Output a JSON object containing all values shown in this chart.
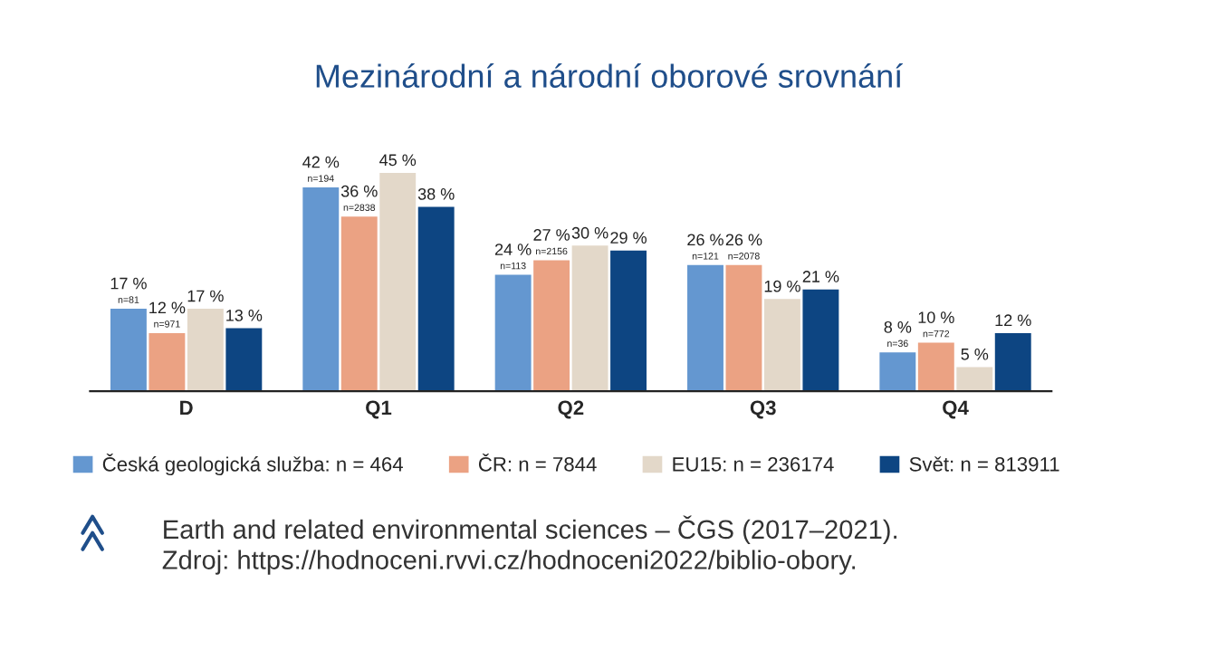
{
  "chart_data": {
    "type": "bar",
    "title": "Mezinárodní a národní oborové srovnání",
    "categories": [
      "D",
      "Q1",
      "Q2",
      "Q3",
      "Q4"
    ],
    "series": [
      {
        "name": "Česká geologická služba: n = 464",
        "color": "#6497d0",
        "values": [
          17,
          42,
          24,
          26,
          8
        ],
        "value_labels": [
          "17 %\nn=81",
          "42 %\nn=194",
          "24 %\nn=113",
          "26 %\nn=121",
          "8 %\nn=36"
        ]
      },
      {
        "name": "ČR: n = 7844",
        "color": "#eba283",
        "values": [
          12,
          36,
          27,
          26,
          10
        ],
        "value_labels": [
          "12 %\nn=971",
          "36 %\nn=2838",
          "27 %\nn=2156",
          "26 %\nn=2078",
          "10 %\nn=772"
        ]
      },
      {
        "name": "EU15: n = 236174",
        "color": "#e3d8c9",
        "values": [
          17,
          45,
          30,
          19,
          5
        ],
        "value_labels": [
          "17 %",
          "45 %",
          "30 %",
          "19 %",
          "5 %"
        ]
      },
      {
        "name": "Svět: n = 813911",
        "color": "#0d4582",
        "values": [
          13,
          38,
          29,
          21,
          12
        ],
        "value_labels": [
          "13 %",
          "38 %",
          "29 %",
          "21 %",
          "12 %"
        ]
      }
    ],
    "annotations": [
      "Earth and related environmental sciences – ČGS (2017–2021).",
      "Zdroj: https://hodnoceni.rvvi.cz/hodnoceni2022/biblio-obory."
    ],
    "tick_labels": "x",
    "grid": false,
    "legend": "bottom"
  }
}
